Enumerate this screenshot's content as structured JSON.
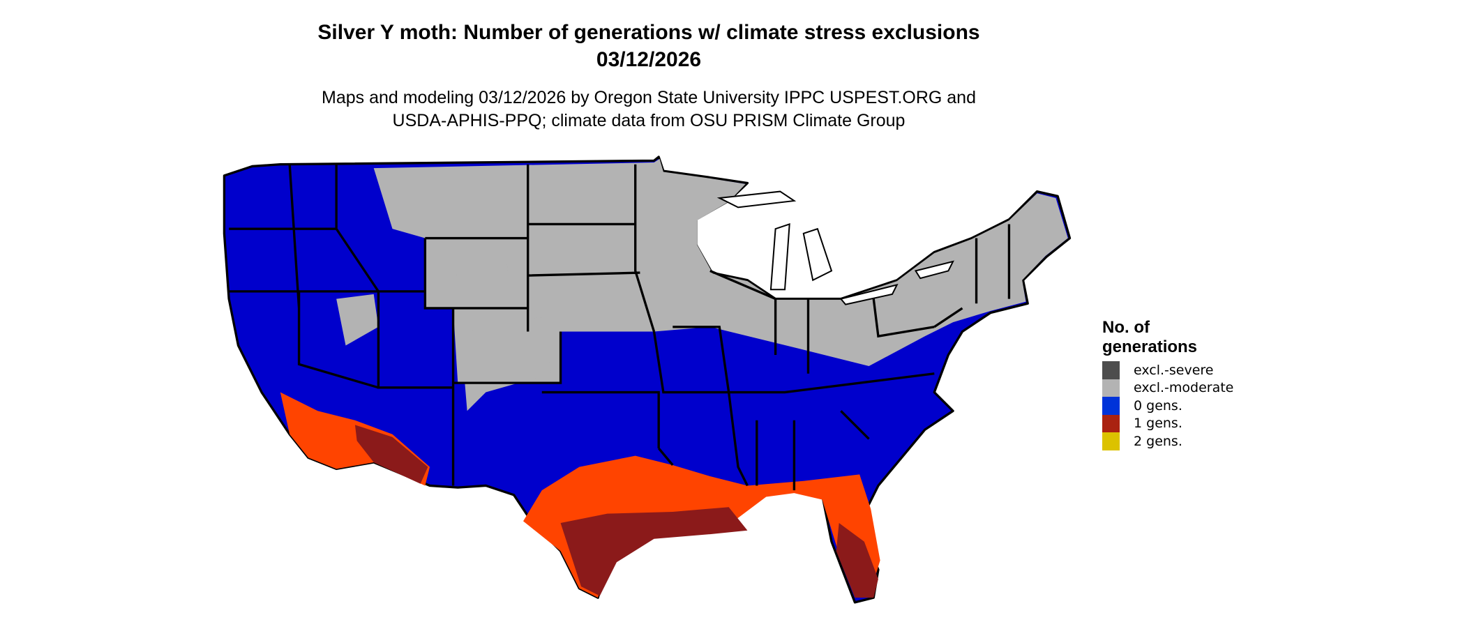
{
  "title": {
    "line1": "Silver Y moth: Number of generations w/ climate stress exclusions",
    "line2": "03/12/2026"
  },
  "subtitle": {
    "line1": "Maps and modeling 03/12/2026 by Oregon State University IPPC USPEST.ORG and",
    "line2": "USDA-APHIS-PPQ; climate data from OSU PRISM Climate Group"
  },
  "legend": {
    "title_line1": "No. of",
    "title_line2": "generations",
    "items": [
      {
        "label": "excl.-severe",
        "color": "#4d4d4d"
      },
      {
        "label": "excl.-moderate",
        "color": "#b3b3b3"
      },
      {
        "label": "0 gens.",
        "color": "#0033d9"
      },
      {
        "label": "1 gens.",
        "color": "#aa2211"
      },
      {
        "label": "2 gens.",
        "color": "#dcc200"
      }
    ]
  },
  "map_colors": {
    "zero_gens": "#0000cc",
    "excl_moderate": "#b3b3b3",
    "one_gens_partial": "#ff4400",
    "one_gens": "#8b1a1a",
    "state_borders": "#000000"
  }
}
